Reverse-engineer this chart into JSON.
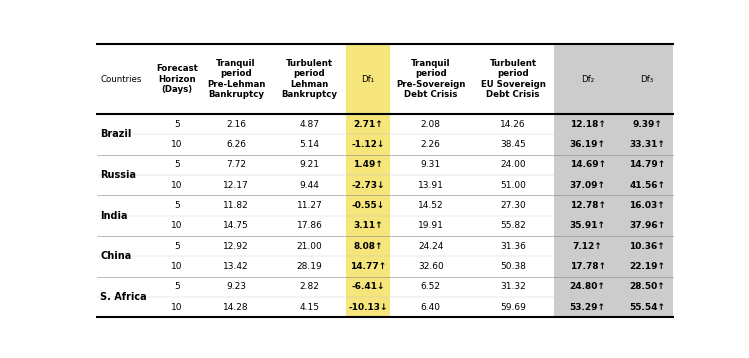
{
  "col_headers": [
    "Countries",
    "Forecast\nHorizon\n(Days)",
    "Tranquil\nperiod\nPre-Lehman\nBankruptcy",
    "Turbulent\nperiod\nLehman\nBankruptcy",
    "Df₁",
    "Tranquil\nperiod\nPre-Sovereign\nDebt Crisis",
    "Turbulent\nperiod\nEU Sovereign\nDebt Crisis",
    "Df₂",
    "Df₃"
  ],
  "rows": [
    [
      "Brazil",
      "5",
      "2.16",
      "4.87",
      "2.71↑",
      "2.08",
      "14.26",
      "12.18↑",
      "9.39↑"
    ],
    [
      "Brazil",
      "10",
      "6.26",
      "5.14",
      "-1.12↓",
      "2.26",
      "38.45",
      "36.19↑",
      "33.31↑"
    ],
    [
      "Russia",
      "5",
      "7.72",
      "9.21",
      "1.49↑",
      "9.31",
      "24.00",
      "14.69↑",
      "14.79↑"
    ],
    [
      "Russia",
      "10",
      "12.17",
      "9.44",
      "-2.73↓",
      "13.91",
      "51.00",
      "37.09↑",
      "41.56↑"
    ],
    [
      "India",
      "5",
      "11.82",
      "11.27",
      "-0.55↓",
      "14.52",
      "27.30",
      "12.78↑",
      "16.03↑"
    ],
    [
      "India",
      "10",
      "14.75",
      "17.86",
      "3.11↑",
      "19.91",
      "55.82",
      "35.91↑",
      "37.96↑"
    ],
    [
      "China",
      "5",
      "12.92",
      "21.00",
      "8.08↑",
      "24.24",
      "31.36",
      "7.12↑",
      "10.36↑"
    ],
    [
      "China",
      "10",
      "13.42",
      "28.19",
      "14.77↑",
      "32.60",
      "50.38",
      "17.78↑",
      "22.19↑"
    ],
    [
      "S. Africa",
      "5",
      "9.23",
      "2.82",
      "-6.41↓",
      "6.52",
      "31.32",
      "24.80↑",
      "28.50↑"
    ],
    [
      "S. Africa",
      "10",
      "14.28",
      "4.15",
      "-10.13↓",
      "6.40",
      "59.69",
      "53.29↑",
      "55.54↑"
    ]
  ],
  "yellow_bg": "#F5E57A",
  "gray_bg": "#CCCCCC",
  "fig_width": 7.49,
  "fig_height": 3.58,
  "dpi": 100
}
